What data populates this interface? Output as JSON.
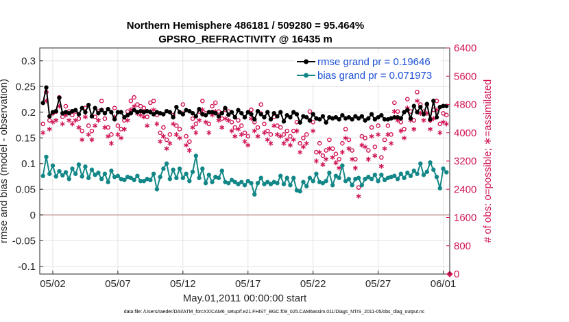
{
  "chart_data": {
    "type": "line",
    "title_line1": "Northern Hemisphere 486181 / 509280 = 95.464%",
    "title_line2": "GPSRO_REFRACTIVITY @ 16435 m",
    "xlabel": "May.01,2011 00:00:00 start",
    "ylabel_left": "rmse and bias (model - observation)",
    "ylabel_right": "# of obs: o=possible; ∗=assimilated",
    "footnote": "data file: /Users/raeder/DAI/ATM_forcXX/CAM6_setup/f.e21.FHIST_BGC.f09_025.CAM6assim.011/Diags_NTrS_2011-05/obs_diag_output.nc",
    "xlim": [
      0,
      31.5
    ],
    "ylim_left": [
      -0.115,
      0.325
    ],
    "ylim_right": [
      0,
      6400
    ],
    "x_ticks": [
      1,
      6,
      11,
      16,
      21,
      26,
      31
    ],
    "x_tick_labels": [
      "05/02",
      "05/07",
      "05/12",
      "05/17",
      "05/22",
      "05/27",
      "06/01"
    ],
    "y_left_ticks": [
      -0.1,
      -0.05,
      0,
      0.05,
      0.1,
      0.15,
      0.2,
      0.25,
      0.3
    ],
    "y_left_tick_labels": [
      "-0.1",
      "-0.05",
      "0",
      "0.05",
      "0.1",
      "0.15",
      "0.2",
      "0.25",
      "0.3"
    ],
    "y_right_ticks": [
      0,
      800,
      1600,
      2400,
      3200,
      4000,
      4800,
      5600,
      6400
    ],
    "y_right_tick_labels": [
      "0",
      "800",
      "1600",
      "2400",
      "3200",
      "4000",
      "4800",
      "5600",
      "6400"
    ],
    "grid": true,
    "legend_position": "top-right",
    "colors": {
      "rmse": "#000000",
      "bias": "#138787",
      "obs": "#d01457",
      "legend_text": "#1f52d6",
      "zero_line": "#c8a0a0",
      "grid": "#e3e3e3"
    },
    "series": [
      {
        "name": "rmse grand pr = 0.19646",
        "axis": "left",
        "x": [
          0.25,
          0.5,
          0.75,
          1,
          1.25,
          1.5,
          1.75,
          2,
          2.25,
          2.5,
          2.75,
          3,
          3.25,
          3.5,
          3.75,
          4,
          4.25,
          4.5,
          4.75,
          5,
          5.25,
          5.5,
          5.75,
          6,
          6.25,
          6.5,
          6.75,
          7,
          7.25,
          7.5,
          7.75,
          8,
          8.25,
          8.5,
          8.75,
          9,
          9.25,
          9.5,
          9.75,
          10,
          10.25,
          10.5,
          10.75,
          11,
          11.25,
          11.5,
          11.75,
          12,
          12.25,
          12.5,
          12.75,
          13,
          13.25,
          13.5,
          13.75,
          14,
          14.25,
          14.5,
          14.75,
          15,
          15.25,
          15.5,
          15.75,
          16,
          16.25,
          16.5,
          16.75,
          17,
          17.25,
          17.5,
          17.75,
          18,
          18.25,
          18.5,
          18.75,
          19,
          19.25,
          19.5,
          19.75,
          20,
          20.25,
          20.5,
          20.75,
          21,
          21.25,
          21.5,
          21.75,
          22,
          22.25,
          22.5,
          22.75,
          23,
          23.25,
          23.5,
          23.75,
          24,
          24.25,
          24.5,
          24.75,
          25,
          25.25,
          25.5,
          25.75,
          26,
          26.25,
          26.5,
          26.75,
          27,
          27.25,
          27.5,
          27.75,
          28,
          28.25,
          28.5,
          28.75,
          29,
          29.25,
          29.5,
          29.75,
          30,
          30.25,
          30.5,
          30.75,
          31,
          31.25
        ],
        "values": [
          0.218,
          0.248,
          0.192,
          0.2,
          0.202,
          0.228,
          0.198,
          0.2,
          0.198,
          0.202,
          0.204,
          0.196,
          0.208,
          0.2,
          0.214,
          0.192,
          0.208,
          0.198,
          0.204,
          0.198,
          0.206,
          0.2,
          0.186,
          0.2,
          0.2,
          0.19,
          0.194,
          0.198,
          0.204,
          0.2,
          0.202,
          0.2,
          0.202,
          0.2,
          0.196,
          0.2,
          0.198,
          0.196,
          0.202,
          0.2,
          0.19,
          0.21,
          0.2,
          0.196,
          0.204,
          0.202,
          0.198,
          0.192,
          0.206,
          0.196,
          0.194,
          0.2,
          0.2,
          0.198,
          0.192,
          0.198,
          0.208,
          0.195,
          0.2,
          0.19,
          0.204,
          0.198,
          0.19,
          0.2,
          0.196,
          0.186,
          0.202,
          0.196,
          0.19,
          0.2,
          0.186,
          0.198,
          0.192,
          0.2,
          0.182,
          0.194,
          0.19,
          0.2,
          0.196,
          0.18,
          0.192,
          0.19,
          0.184,
          0.196,
          0.188,
          0.186,
          0.192,
          0.18,
          0.19,
          0.188,
          0.19,
          0.186,
          0.194,
          0.188,
          0.19,
          0.186,
          0.192,
          0.188,
          0.192,
          0.184,
          0.188,
          0.196,
          0.186,
          0.19,
          0.194,
          0.186,
          0.186,
          0.188,
          0.19,
          0.19,
          0.188,
          0.2,
          0.204,
          0.188,
          0.212,
          0.2,
          0.21,
          0.196,
          0.216,
          0.186,
          0.222,
          0.19,
          0.21,
          0.212,
          0.212
        ]
      },
      {
        "name": "bias grand pr = 0.071973",
        "axis": "left",
        "x": [
          0.25,
          0.5,
          0.75,
          1,
          1.25,
          1.5,
          1.75,
          2,
          2.25,
          2.5,
          2.75,
          3,
          3.25,
          3.5,
          3.75,
          4,
          4.25,
          4.5,
          4.75,
          5,
          5.25,
          5.5,
          5.75,
          6,
          6.25,
          6.5,
          6.75,
          7,
          7.25,
          7.5,
          7.75,
          8,
          8.25,
          8.5,
          8.75,
          9,
          9.25,
          9.5,
          9.75,
          10,
          10.25,
          10.5,
          10.75,
          11,
          11.25,
          11.5,
          11.75,
          12,
          12.25,
          12.5,
          12.75,
          13,
          13.25,
          13.5,
          13.75,
          14,
          14.25,
          14.5,
          14.75,
          15,
          15.25,
          15.5,
          15.75,
          16,
          16.25,
          16.5,
          16.75,
          17,
          17.25,
          17.5,
          17.75,
          18,
          18.25,
          18.5,
          18.75,
          19,
          19.25,
          19.5,
          19.75,
          20,
          20.25,
          20.5,
          20.75,
          21,
          21.25,
          21.5,
          21.75,
          22,
          22.25,
          22.5,
          22.75,
          23,
          23.25,
          23.5,
          23.75,
          24,
          24.25,
          24.5,
          24.75,
          25,
          25.25,
          25.5,
          25.75,
          26,
          26.25,
          26.5,
          26.75,
          27,
          27.25,
          27.5,
          27.75,
          28,
          28.25,
          28.5,
          28.75,
          29,
          29.25,
          29.5,
          29.75,
          30,
          30.25,
          30.5,
          30.75,
          31,
          31.25
        ],
        "values": [
          0.076,
          0.113,
          0.08,
          0.096,
          0.075,
          0.085,
          0.077,
          0.083,
          0.07,
          0.09,
          0.08,
          0.098,
          0.075,
          0.094,
          0.072,
          0.088,
          0.078,
          0.082,
          0.07,
          0.08,
          0.064,
          0.086,
          0.074,
          0.076,
          0.07,
          0.068,
          0.074,
          0.072,
          0.068,
          0.076,
          0.066,
          0.066,
          0.07,
          0.068,
          0.08,
          0.05,
          0.074,
          0.09,
          0.1,
          0.07,
          0.088,
          0.072,
          0.09,
          0.072,
          0.08,
          0.066,
          0.084,
          0.115,
          0.072,
          0.09,
          0.062,
          0.078,
          0.064,
          0.074,
          0.072,
          0.086,
          0.064,
          0.062,
          0.068,
          0.064,
          0.06,
          0.064,
          0.058,
          0.066,
          0.062,
          0.04,
          0.062,
          0.072,
          0.06,
          0.064,
          0.06,
          0.064,
          0.062,
          0.076,
          0.06,
          0.072,
          0.058,
          0.072,
          0.048,
          0.046,
          0.064,
          0.056,
          0.072,
          0.066,
          0.08,
          0.064,
          0.062,
          0.066,
          0.082,
          0.058,
          0.076,
          0.072,
          0.096,
          0.066,
          0.07,
          0.058,
          0.07,
          0.072,
          0.058,
          0.07,
          0.074,
          0.07,
          0.078,
          0.066,
          0.078,
          0.068,
          0.072,
          0.074,
          0.076,
          0.07,
          0.08,
          0.072,
          0.082,
          0.076,
          0.086,
          0.08,
          0.1,
          0.078,
          0.084,
          0.102,
          0.088,
          0.074,
          0.052,
          0.09,
          0.083
        ]
      },
      {
        "name": "possible",
        "axis": "right",
        "marker": "circle",
        "x": [
          0.25,
          0.5,
          0.75,
          1,
          1.25,
          1.5,
          1.75,
          2,
          2.25,
          2.5,
          2.75,
          3,
          3.25,
          3.5,
          3.75,
          4,
          4.25,
          4.5,
          4.75,
          5,
          5.25,
          5.5,
          5.75,
          6,
          6.25,
          6.5,
          6.75,
          7,
          7.25,
          7.5,
          7.75,
          8,
          8.25,
          8.5,
          8.75,
          9,
          9.25,
          9.5,
          9.75,
          10,
          10.25,
          10.5,
          10.75,
          11,
          11.25,
          11.5,
          11.75,
          12,
          12.25,
          12.5,
          12.75,
          13,
          13.25,
          13.5,
          13.75,
          14,
          14.25,
          14.5,
          14.75,
          15,
          15.25,
          15.5,
          15.75,
          16,
          16.25,
          16.5,
          16.75,
          17,
          17.25,
          17.5,
          17.75,
          18,
          18.25,
          18.5,
          18.75,
          19,
          19.25,
          19.5,
          19.75,
          20,
          20.25,
          20.5,
          20.75,
          21,
          21.25,
          21.5,
          21.75,
          22,
          22.25,
          22.5,
          22.75,
          23,
          23.25,
          23.5,
          23.75,
          24,
          24.25,
          24.5,
          24.75,
          25,
          25.25,
          25.5,
          25.75,
          26,
          26.25,
          26.5,
          26.75,
          27,
          27.25,
          27.5,
          27.75,
          28,
          28.25,
          28.5,
          28.75,
          29,
          29.25,
          29.5,
          29.75,
          30,
          30.25,
          30.5,
          30.75,
          31,
          31.25
        ],
        "values": [
          4250,
          5150,
          4350,
          4550,
          4600,
          5000,
          4450,
          4750,
          4600,
          4500,
          4600,
          4400,
          4050,
          4700,
          4200,
          4050,
          4450,
          4600,
          4900,
          4400,
          4150,
          3950,
          4700,
          4200,
          4100,
          4350,
          4600,
          4900,
          5000,
          4800,
          4750,
          4700,
          4450,
          4850,
          4900,
          4500,
          4000,
          4150,
          3800,
          3950,
          4500,
          4200,
          4100,
          4800,
          3900,
          3750,
          4400,
          4250,
          4600,
          4900,
          4550,
          4250,
          4750,
          4850,
          4600,
          4400,
          4650,
          4600,
          4300,
          4150,
          4350,
          4200,
          4000,
          3900,
          4650,
          4300,
          4150,
          4800,
          4250,
          4050,
          3950,
          4450,
          4200,
          4150,
          3950,
          4050,
          3900,
          4050,
          4300,
          3700,
          3850,
          3950,
          4600,
          4300,
          3450,
          3700,
          3350,
          3500,
          3800,
          3550,
          3400,
          3250,
          3700,
          4100,
          3800,
          3500,
          3250,
          2450,
          3900,
          3850,
          3500,
          4150,
          3600,
          4200,
          3300,
          3800,
          4200,
          3950,
          4850,
          4600,
          4300,
          4100,
          4950,
          4600,
          4350,
          5150,
          4800,
          4600,
          4800,
          4350,
          4650,
          4900,
          4250,
          4550,
          4500
        ]
      },
      {
        "name": "assimilated",
        "axis": "right",
        "marker": "asterisk",
        "x": [
          0.25,
          0.5,
          0.75,
          1,
          1.25,
          1.5,
          1.75,
          2,
          2.25,
          2.5,
          2.75,
          3,
          3.25,
          3.5,
          3.75,
          4,
          4.25,
          4.5,
          4.75,
          5,
          5.25,
          5.5,
          5.75,
          6,
          6.25,
          6.5,
          6.75,
          7,
          7.25,
          7.5,
          7.75,
          8,
          8.25,
          8.5,
          8.75,
          9,
          9.25,
          9.5,
          9.75,
          10,
          10.25,
          10.5,
          10.75,
          11,
          11.25,
          11.5,
          11.75,
          12,
          12.25,
          12.5,
          12.75,
          13,
          13.25,
          13.5,
          13.75,
          14,
          14.25,
          14.5,
          14.75,
          15,
          15.25,
          15.5,
          15.75,
          16,
          16.25,
          16.5,
          16.75,
          17,
          17.25,
          17.5,
          17.75,
          18,
          18.25,
          18.5,
          18.75,
          19,
          19.25,
          19.5,
          19.75,
          20,
          20.25,
          20.5,
          20.75,
          21,
          21.25,
          21.5,
          21.75,
          22,
          22.25,
          22.5,
          22.75,
          23,
          23.25,
          23.5,
          23.75,
          24,
          24.25,
          24.5,
          24.75,
          25,
          25.25,
          25.5,
          25.75,
          26,
          26.25,
          26.5,
          26.75,
          27,
          27.25,
          27.5,
          27.75,
          28,
          28.25,
          28.5,
          28.75,
          29,
          29.25,
          29.5,
          29.75,
          30,
          30.25,
          30.5,
          30.75,
          31,
          31.25
        ],
        "values": [
          4000,
          4900,
          4100,
          4300,
          4350,
          4750,
          4250,
          4500,
          4350,
          4250,
          4350,
          4150,
          3800,
          4450,
          3950,
          3800,
          4200,
          4350,
          4650,
          4150,
          3900,
          3700,
          4450,
          3950,
          3850,
          4100,
          4350,
          4650,
          4750,
          4550,
          4500,
          4450,
          4200,
          4600,
          4650,
          4250,
          3750,
          3900,
          3550,
          3700,
          4250,
          3950,
          3850,
          4550,
          3650,
          3500,
          4150,
          4000,
          4350,
          4650,
          4300,
          4000,
          4500,
          4600,
          4350,
          4150,
          4400,
          4350,
          4050,
          3900,
          4100,
          3950,
          3750,
          3650,
          4400,
          4050,
          3900,
          4550,
          4000,
          3800,
          3700,
          4200,
          3950,
          3900,
          3700,
          3800,
          3650,
          3800,
          4050,
          3450,
          3600,
          3700,
          4350,
          4050,
          3200,
          3450,
          3100,
          3250,
          3550,
          3300,
          3150,
          3000,
          3450,
          3850,
          3550,
          3250,
          3000,
          2200,
          3650,
          3600,
          3250,
          3900,
          3350,
          3950,
          3050,
          3550,
          3950,
          3700,
          4600,
          4350,
          4050,
          3850,
          4700,
          4350,
          4100,
          4900,
          4550,
          4350,
          4550,
          4100,
          4400,
          4650,
          4000,
          4300,
          4250
        ]
      }
    ],
    "extra_marker": {
      "x": 31.5,
      "value": 0,
      "axis": "right"
    }
  }
}
